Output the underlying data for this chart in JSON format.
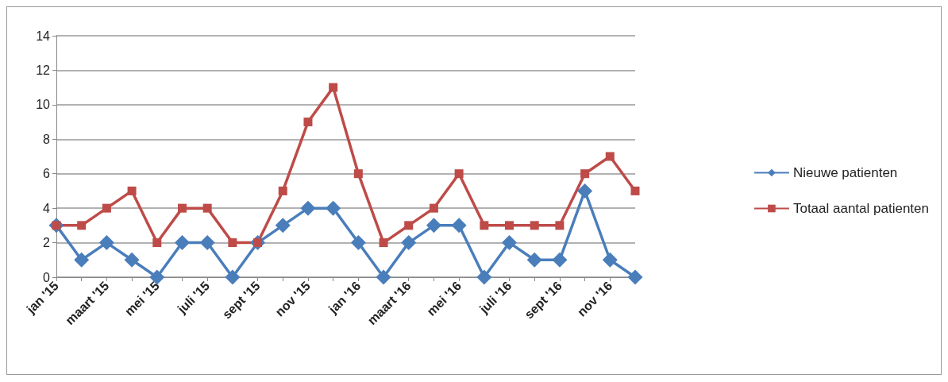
{
  "chart_data": {
    "type": "line",
    "categories": [
      "jan '15",
      null,
      "maart '15",
      null,
      "mei '15",
      null,
      "juli '15",
      null,
      "sept '15",
      null,
      "nov '15",
      null,
      "jan '16",
      null,
      "maart '16",
      null,
      "mei '16",
      null,
      "juli '16",
      null,
      "sept '16",
      null,
      "nov '16",
      null
    ],
    "series": [
      {
        "name": "Nieuwe patienten",
        "color": "#4a7ebb",
        "marker": "diamond",
        "values": [
          3,
          1,
          2,
          1,
          0,
          2,
          2,
          0,
          2,
          3,
          4,
          4,
          2,
          0,
          2,
          3,
          3,
          0,
          2,
          1,
          1,
          5,
          1,
          0
        ]
      },
      {
        "name": "Totaal aantal patienten",
        "color": "#be4b48",
        "marker": "square",
        "values": [
          3,
          3,
          4,
          5,
          2,
          4,
          4,
          2,
          2,
          5,
          9,
          11,
          6,
          2,
          3,
          4,
          6,
          3,
          3,
          3,
          3,
          6,
          7,
          5
        ]
      }
    ],
    "ylim": [
      0,
      14
    ],
    "yticks": [
      0,
      2,
      4,
      6,
      8,
      10,
      12,
      14
    ],
    "grid": "y",
    "legend": "right"
  }
}
